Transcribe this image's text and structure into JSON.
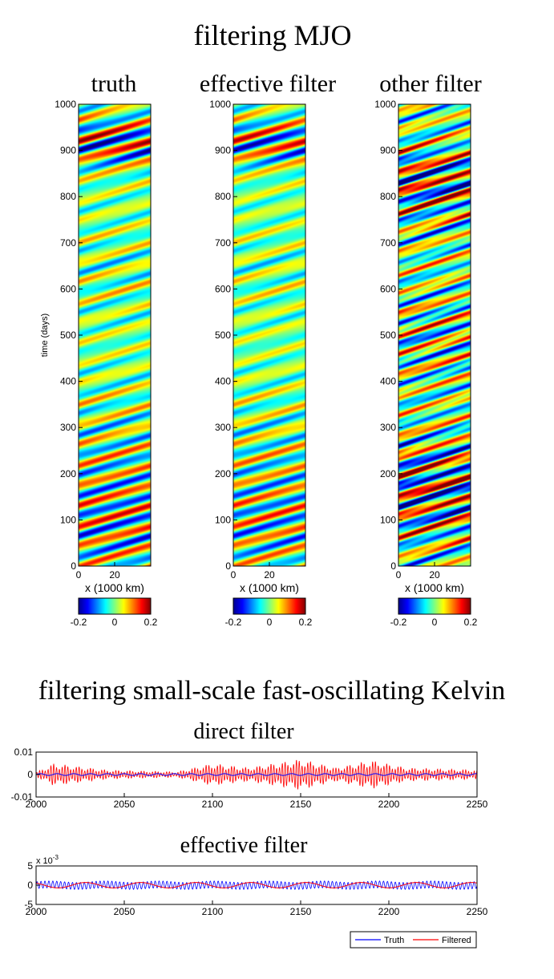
{
  "figure": {
    "title_top": "filtering MJO",
    "title_bottom": "filtering small-scale fast-oscillating Kelvin"
  },
  "chart_data": [
    {
      "type": "heatmap",
      "title": "truth",
      "xlabel": "x (1000 km)",
      "ylabel": "time (days)",
      "xlim": [
        0,
        40
      ],
      "ylim": [
        0,
        1000
      ],
      "xticks": [
        0,
        20
      ],
      "yticks": [
        0,
        100,
        200,
        300,
        400,
        500,
        600,
        700,
        800,
        900,
        1000
      ],
      "colorbar": {
        "ticks": [
          "-0.2",
          "0",
          "0.2"
        ],
        "range": [
          -0.2,
          0.2
        ],
        "colormap": "jet"
      },
      "pattern": {
        "kind": "eastward-tilted bands",
        "peak_windows_days": [
          [
            20,
            260
          ],
          [
            870,
            960
          ]
        ],
        "peak_amplitude": 0.2,
        "background_amplitude": 0.08
      }
    },
    {
      "type": "heatmap",
      "title": "effective filter",
      "xlabel": "x (1000 km)",
      "ylabel": "",
      "xlim": [
        0,
        40
      ],
      "ylim": [
        0,
        1000
      ],
      "xticks": [
        0,
        20
      ],
      "yticks": [
        0,
        100,
        200,
        300,
        400,
        500,
        600,
        700,
        800,
        900,
        1000
      ],
      "colorbar": {
        "ticks": [
          "-0.2",
          "0",
          "0.2"
        ],
        "range": [
          -0.2,
          0.2
        ],
        "colormap": "jet"
      },
      "pattern": {
        "kind": "eastward-tilted bands",
        "peak_windows_days": [
          [
            20,
            260
          ],
          [
            870,
            960
          ]
        ],
        "peak_amplitude": 0.18,
        "background_amplitude": 0.07
      }
    },
    {
      "type": "heatmap",
      "title": "other filter",
      "xlabel": "x (1000 km)",
      "ylabel": "",
      "xlim": [
        0,
        40
      ],
      "ylim": [
        0,
        1000
      ],
      "xticks": [
        0,
        20
      ],
      "yticks": [
        0,
        100,
        200,
        300,
        400,
        500,
        600,
        700,
        800,
        900,
        1000
      ],
      "colorbar": {
        "ticks": [
          "-0.2",
          "0",
          "0.2"
        ],
        "range": [
          -0.2,
          0.2
        ],
        "colormap": "jet"
      },
      "pattern": {
        "kind": "eastward-tilted bands, noisier",
        "peak_windows_days": [
          [
            20,
            260
          ],
          [
            780,
            900
          ]
        ],
        "peak_amplitude": 0.2,
        "background_amplitude": 0.12
      }
    },
    {
      "type": "line",
      "title": "direct filter",
      "xlim": [
        2000,
        2250
      ],
      "ylim": [
        -0.01,
        0.01
      ],
      "xticks": [
        2000,
        2050,
        2100,
        2150,
        2200,
        2250
      ],
      "yticks": [
        "0.01",
        "0",
        "-0.01"
      ],
      "series": [
        {
          "color": "#0000ff",
          "kind": "oscillation",
          "amplitude": 0.0004
        },
        {
          "color": "#ff0000",
          "kind": "fast oscillation",
          "amplitude_envelope": {
            "x": [
              2000,
              2010,
              2040,
              2080,
              2100,
              2120,
              2150,
              2170,
              2190,
              2210,
              2250
            ],
            "y": [
              0.001,
              0.005,
              0.002,
              0.0012,
              0.005,
              0.003,
              0.007,
              0.003,
              0.0065,
              0.003,
              0.002
            ]
          }
        }
      ]
    },
    {
      "type": "line",
      "title": "effective filter",
      "xlim": [
        2000,
        2250
      ],
      "ylim": [
        -0.005,
        0.005
      ],
      "y_multiplier_label": "x 10",
      "y_multiplier_exponent": "-3",
      "xticks": [
        2000,
        2050,
        2100,
        2150,
        2200,
        2250
      ],
      "yticks": [
        "5",
        "0",
        "-5"
      ],
      "series": [
        {
          "name": "Truth",
          "color": "#0000ff",
          "kind": "fast oscillation",
          "amplitude": 0.0009,
          "cycles": 112
        },
        {
          "name": "Filtered",
          "color": "#ff0000",
          "kind": "slow oscillation",
          "amplitude": 0.0007,
          "cycles": 8
        }
      ],
      "legend": {
        "placement": "below",
        "entries": [
          "Truth",
          "Filtered"
        ]
      }
    }
  ]
}
